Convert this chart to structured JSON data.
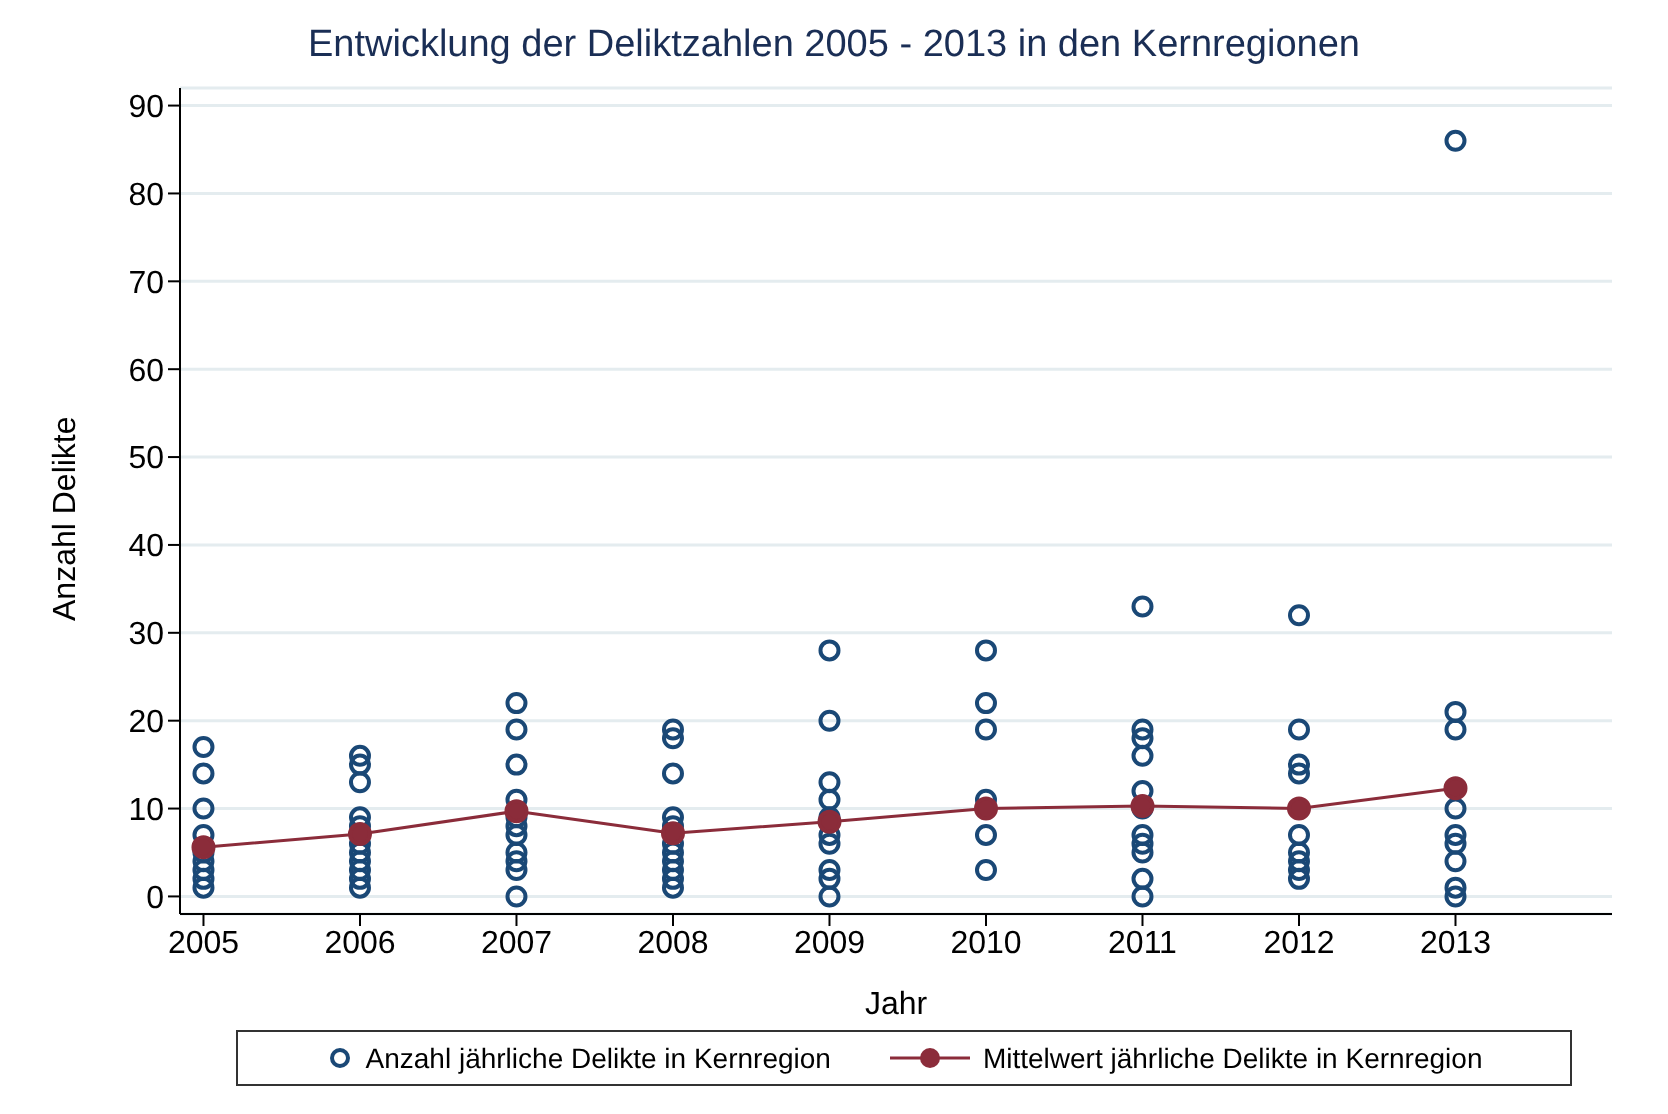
{
  "chart_data": {
    "type": "scatter",
    "title": "Entwicklung der Deliktzahlen 2005 - 2013 in den Kernregionen",
    "xlabel": "Jahr",
    "ylabel": "Anzahl Delikte",
    "xlim": [
      2004.85,
      2014
    ],
    "xticks": [
      2005,
      2006,
      2007,
      2008,
      2009,
      2010,
      2011,
      2012,
      2013
    ],
    "ylim": [
      -2,
      92
    ],
    "yticks": [
      0,
      10,
      20,
      30,
      40,
      50,
      60,
      70,
      80,
      90
    ],
    "grid": "y",
    "legend": "bottom",
    "series": [
      {
        "name": "Anzahl jährliche Delikte in Kernregion",
        "marker": "circle",
        "color": "#1a4876",
        "x": [
          2005,
          2005,
          2005,
          2005,
          2005,
          2005,
          2005,
          2005,
          2005,
          2006,
          2006,
          2006,
          2006,
          2006,
          2006,
          2006,
          2006,
          2006,
          2006,
          2006,
          2007,
          2007,
          2007,
          2007,
          2007,
          2007,
          2007,
          2007,
          2007,
          2007,
          2007,
          2008,
          2008,
          2008,
          2008,
          2008,
          2008,
          2008,
          2008,
          2008,
          2008,
          2008,
          2009,
          2009,
          2009,
          2009,
          2009,
          2009,
          2009,
          2009,
          2009,
          2009,
          2010,
          2010,
          2010,
          2010,
          2010,
          2010,
          2011,
          2011,
          2011,
          2011,
          2011,
          2011,
          2011,
          2011,
          2011,
          2011,
          2011,
          2012,
          2012,
          2012,
          2012,
          2012,
          2012,
          2012,
          2012,
          2012,
          2013,
          2013,
          2013,
          2013,
          2013,
          2013,
          2013,
          2013,
          2013
        ],
        "values": [
          17,
          14,
          10,
          7,
          5,
          4,
          3,
          2,
          1,
          16,
          15,
          13,
          9,
          8,
          6,
          5,
          4,
          3,
          2,
          1,
          22,
          19,
          15,
          11,
          9,
          8,
          7,
          5,
          4,
          3,
          0,
          19,
          18,
          14,
          9,
          8,
          6,
          5,
          4,
          3,
          2,
          1,
          28,
          20,
          13,
          11,
          9,
          7,
          6,
          3,
          2,
          0,
          28,
          22,
          19,
          11,
          7,
          3,
          33,
          19,
          18,
          16,
          12,
          10,
          7,
          6,
          5,
          2,
          0,
          32,
          19,
          15,
          14,
          7,
          5,
          4,
          3,
          2,
          86,
          21,
          19,
          10,
          7,
          6,
          4,
          1,
          0
        ]
      },
      {
        "name": "Mittelwert jährliche Delikte in Kernregion",
        "type": "line",
        "marker": "circle",
        "line_style": "solid",
        "color": "#8b2c3a",
        "x": [
          2005,
          2006,
          2007,
          2008,
          2009,
          2010,
          2011,
          2012,
          2013
        ],
        "values": [
          5.6,
          7.1,
          9.7,
          7.2,
          8.5,
          10,
          10.3,
          10,
          12.3
        ]
      }
    ]
  }
}
